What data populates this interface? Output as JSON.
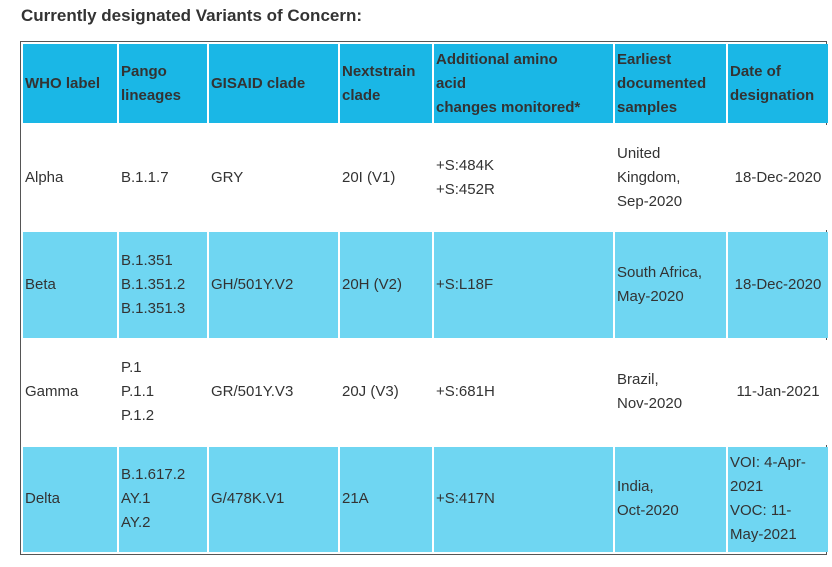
{
  "heading": "Currently designated Variants of Concern:",
  "columns": [
    "WHO label",
    "Pango lineages",
    "GISAID clade",
    "Nextstrain clade",
    "Additional amino acid changes monitored*",
    "Earliest documented samples",
    "Date of designation"
  ],
  "column_lines": [
    [
      "WHO label"
    ],
    [
      "Pango",
      "lineages"
    ],
    [
      "GISAID clade"
    ],
    [
      "Nextstrain",
      "clade"
    ],
    [
      "Additional amino",
      "acid",
      "changes monitored*"
    ],
    [
      "Earliest",
      "documented",
      "samples"
    ],
    [
      "Date of",
      "designation"
    ]
  ],
  "rows": [
    {
      "who": "Alpha",
      "pango": [
        "B.1.1.7"
      ],
      "gisaid": "GRY",
      "nextstrain": "20I (V1)",
      "changes": [
        "+S:484K",
        "+S:452R"
      ],
      "samples": [
        "United",
        "Kingdom,",
        "Sep-2020"
      ],
      "date": [
        "18-Dec-2020"
      ]
    },
    {
      "who": "Beta",
      "pango": [
        "B.1.351",
        "B.1.351.2",
        "B.1.351.3"
      ],
      "gisaid": "GH/501Y.V2",
      "nextstrain": "20H (V2)",
      "changes": [
        "+S:L18F"
      ],
      "samples": [
        "South Africa,",
        "May-2020"
      ],
      "date": [
        "18-Dec-2020"
      ]
    },
    {
      "who": "Gamma",
      "pango": [
        "P.1",
        "P.1.1",
        "P.1.2"
      ],
      "gisaid": "GR/501Y.V3",
      "nextstrain": "20J (V3)",
      "changes": [
        "+S:681H"
      ],
      "samples": [
        "Brazil,",
        "Nov-2020"
      ],
      "date": [
        "11-Jan-2021"
      ]
    },
    {
      "who": "Delta",
      "pango": [
        "B.1.617.2",
        "AY.1",
        "AY.2"
      ],
      "gisaid": "G/478K.V1",
      "nextstrain": "21A",
      "changes": [
        "+S:417N"
      ],
      "samples": [
        "India,",
        "Oct-2020"
      ],
      "date": [
        "VOI: 4-Apr-",
        "2021",
        "VOC: 11-",
        "May-2021"
      ]
    }
  ]
}
